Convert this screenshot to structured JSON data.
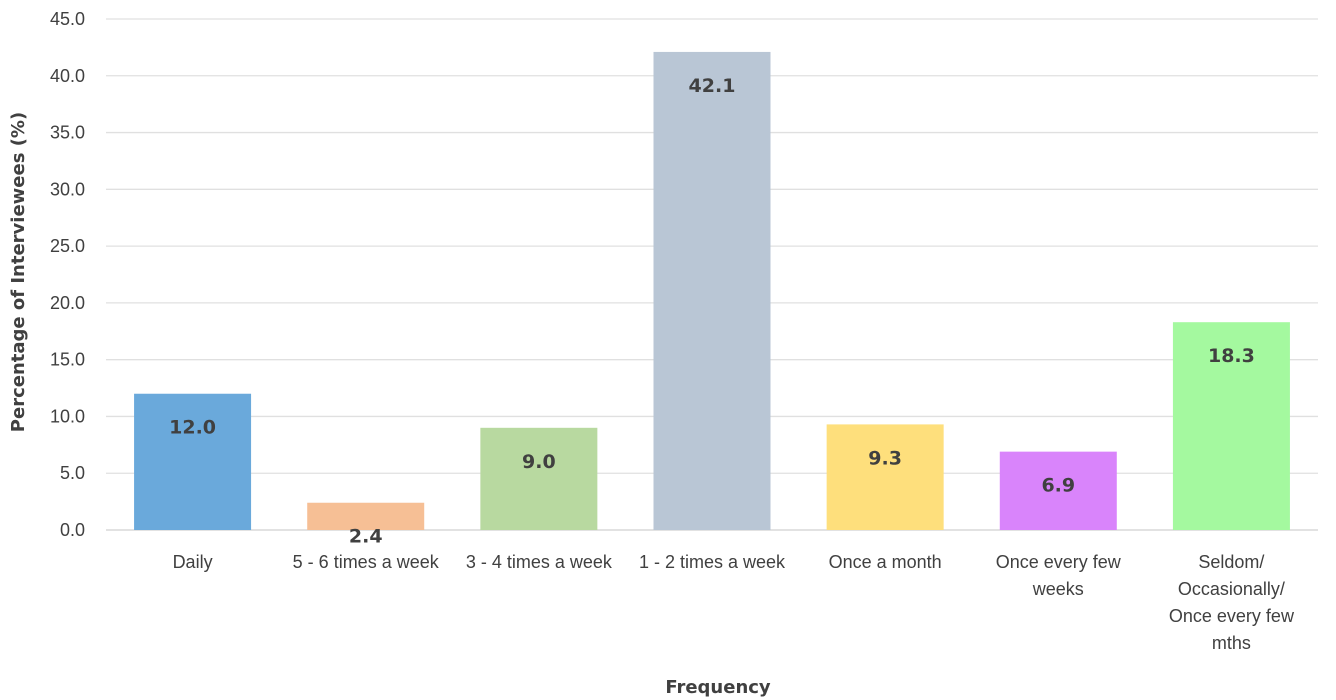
{
  "chart_data": {
    "type": "bar",
    "title": "",
    "xlabel": "Frequency",
    "ylabel": "Percentage of Interviewees (%)",
    "ylim": [
      0,
      45
    ],
    "yticks": [
      "0.0",
      "5.0",
      "10.0",
      "15.0",
      "20.0",
      "25.0",
      "30.0",
      "35.0",
      "40.0",
      "45.0"
    ],
    "grid": true,
    "legend": "none",
    "categories": [
      "Daily",
      "5 - 6 times a week",
      "3 - 4 times a week",
      "1 - 2 times a week",
      "Once a month",
      "Once every few weeks",
      "Seldom/ Occasionally/ Once every few mths"
    ],
    "category_lines": [
      [
        "Daily"
      ],
      [
        "5 - 6 times a week"
      ],
      [
        "3 - 4 times a week"
      ],
      [
        "1 - 2 times a week"
      ],
      [
        "Once a month"
      ],
      [
        "Once every few",
        "weeks"
      ],
      [
        "Seldom/",
        "Occasionally/",
        "Once every few",
        "mths"
      ]
    ],
    "values": [
      12.0,
      2.4,
      9.0,
      42.1,
      9.3,
      6.9,
      18.3
    ],
    "data_labels": [
      "12.0",
      "2.4",
      "9.0",
      "42.1",
      "9.3",
      "6.9",
      "18.3"
    ],
    "colors": [
      "#6aa9db",
      "#f6bf95",
      "#b8d9a0",
      "#b9c6d5",
      "#fedf7c",
      "#d984fb",
      "#a4f99f"
    ]
  }
}
